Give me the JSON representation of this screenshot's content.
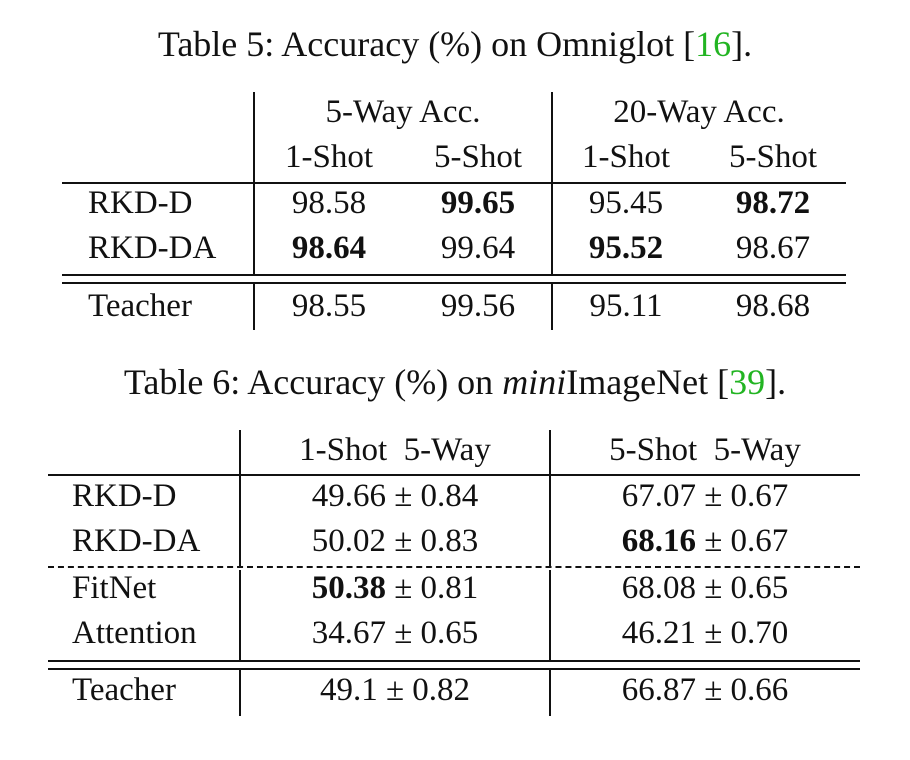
{
  "table5": {
    "caption": {
      "prefix": "Table 5: Accuracy (%) on Omniglot [",
      "cite": "16",
      "suffix": "]."
    },
    "group_headers": [
      "5-Way Acc.",
      "20-Way Acc."
    ],
    "sub_headers": [
      "1-Shot",
      "5-Shot",
      "1-Shot",
      "5-Shot"
    ],
    "rows": [
      {
        "label": "RKD-D",
        "values": [
          "98.58",
          "99.65",
          "95.45",
          "98.72"
        ],
        "bold": [
          false,
          true,
          false,
          true
        ]
      },
      {
        "label": "RKD-DA",
        "values": [
          "98.64",
          "99.64",
          "95.52",
          "98.67"
        ],
        "bold": [
          true,
          false,
          true,
          false
        ]
      },
      {
        "label": "Teacher",
        "values": [
          "98.55",
          "99.56",
          "95.11",
          "98.68"
        ],
        "bold": [
          false,
          false,
          false,
          false
        ]
      }
    ]
  },
  "table6": {
    "caption": {
      "prefix": "Table 6: Accuracy (%) on ",
      "italic": "mini",
      "middle": "ImageNet [",
      "cite": "39",
      "suffix": "]."
    },
    "headers": [
      "1-Shot  5-Way",
      "5-Shot  5-Way"
    ],
    "rows": [
      {
        "label": "RKD-D",
        "c1_mean": "49.66",
        "c1_sd": " ± 0.84",
        "c1_bold": false,
        "c2_mean": "67.07",
        "c2_sd": " ± 0.67",
        "c2_bold": false
      },
      {
        "label": "RKD-DA",
        "c1_mean": "50.02",
        "c1_sd": " ± 0.83",
        "c1_bold": false,
        "c2_mean": "68.16",
        "c2_sd": " ± 0.67",
        "c2_bold": true
      },
      {
        "label": "FitNet",
        "c1_mean": "50.38",
        "c1_sd": " ± 0.81",
        "c1_bold": true,
        "c2_mean": "68.08",
        "c2_sd": " ± 0.65",
        "c2_bold": false
      },
      {
        "label": "Attention",
        "c1_mean": "34.67",
        "c1_sd": " ± 0.65",
        "c1_bold": false,
        "c2_mean": "46.21",
        "c2_sd": " ± 0.70",
        "c2_bold": false
      },
      {
        "label": "Teacher",
        "c1_mean": "49.1",
        "c1_sd": " ± 0.82",
        "c1_bold": false,
        "c2_mean": "66.87",
        "c2_sd": " ± 0.66",
        "c2_bold": false
      }
    ]
  }
}
